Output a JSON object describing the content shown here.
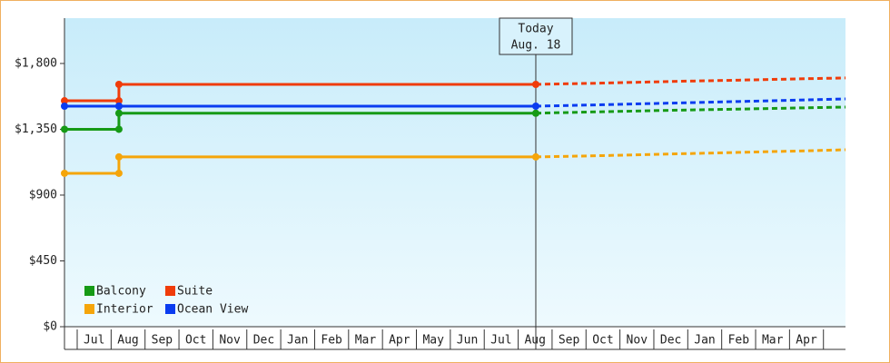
{
  "chart_data": {
    "type": "line",
    "categories": [
      "Jul",
      "Aug",
      "Sep",
      "Oct",
      "Nov",
      "Dec",
      "Jan",
      "Feb",
      "Mar",
      "Apr",
      "May",
      "Jun",
      "Jul",
      "Aug",
      "Sep",
      "Oct",
      "Nov",
      "Dec",
      "Jan",
      "Feb",
      "Mar",
      "Apr"
    ],
    "xlim": [
      -0.375,
      22.65
    ],
    "ylim": [
      0,
      2110
    ],
    "yticks": [
      {
        "value": 0,
        "label": "$0"
      },
      {
        "value": 450,
        "label": "$450"
      },
      {
        "value": 900,
        "label": "$900"
      },
      {
        "value": 1350,
        "label": "$1,350"
      },
      {
        "value": 1800,
        "label": "$1,800"
      }
    ],
    "annotation": {
      "x": 13.52,
      "lines": [
        "Today",
        "Aug. 18"
      ]
    },
    "series": [
      {
        "name": "Balcony",
        "color": "#169a16",
        "x": [
          -0.375,
          1.23,
          1.23,
          13.52
        ],
        "values": [
          1350,
          1350,
          1460,
          1460
        ]
      },
      {
        "name": "Suite",
        "color": "#f03c0a",
        "x": [
          -0.375,
          1.23,
          1.23,
          13.52
        ],
        "values": [
          1545,
          1545,
          1657,
          1657
        ]
      },
      {
        "name": "Interior",
        "color": "#f5a50a",
        "x": [
          -0.375,
          1.23,
          1.23,
          13.52
        ],
        "values": [
          1049,
          1049,
          1161,
          1161
        ]
      },
      {
        "name": "Ocean View",
        "color": "#0a3cf0",
        "x": [
          -0.375,
          1.23,
          1.23,
          13.52
        ],
        "values": [
          1508,
          1508,
          1508,
          1508
        ]
      }
    ],
    "forecast": [
      {
        "x": [
          13.52,
          15.5,
          17.5,
          19.5,
          21.5,
          22.65
        ],
        "values": [
          1460,
          1470,
          1480,
          1488,
          1497,
          1502
        ]
      },
      {
        "x": [
          13.52,
          15.5,
          17.5,
          19.5,
          21.5,
          22.65
        ],
        "values": [
          1657,
          1666,
          1677,
          1686,
          1696,
          1701
        ]
      },
      {
        "x": [
          13.52,
          15.5,
          17.5,
          19.5,
          21.5,
          22.65
        ],
        "values": [
          1161,
          1170,
          1181,
          1192,
          1203,
          1210
        ]
      },
      {
        "x": [
          13.52,
          15.5,
          17.5,
          19.5,
          21.5,
          22.65
        ],
        "values": [
          1508,
          1518,
          1529,
          1540,
          1551,
          1558
        ]
      }
    ]
  }
}
